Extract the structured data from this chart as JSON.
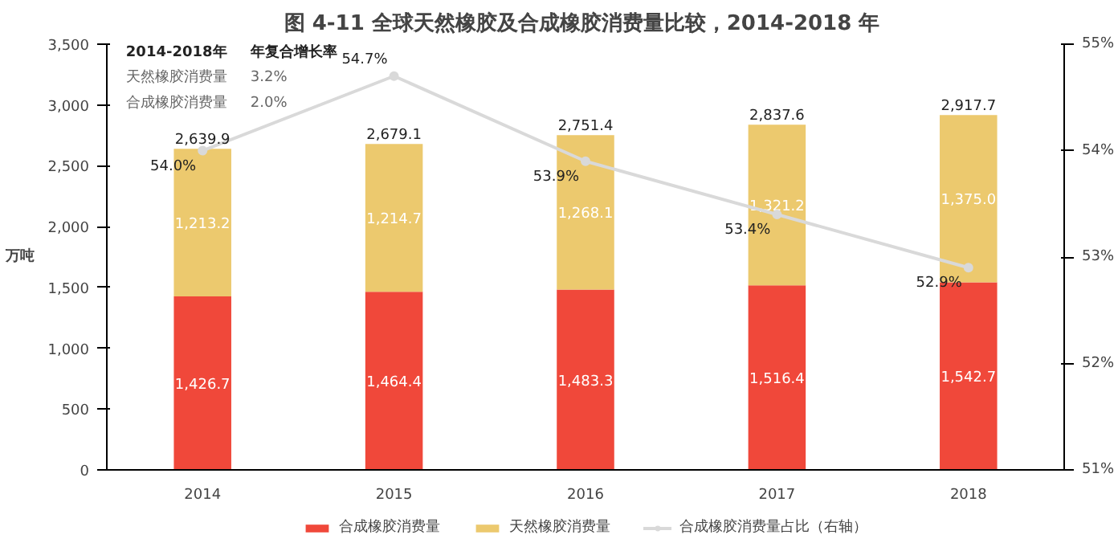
{
  "chart_data": {
    "type": "bar",
    "title": "图 4-11  全球天然橡胶及合成橡胶消费量比较，2014-2018 年",
    "ylabel": "万吨",
    "categories": [
      "2014",
      "2015",
      "2016",
      "2017",
      "2018"
    ],
    "stacked": true,
    "series": [
      {
        "name": "合成橡胶消费量",
        "color": "#f0483a",
        "values": [
          1426.7,
          1464.4,
          1483.3,
          1516.4,
          1542.7
        ],
        "value_labels": [
          "1,426.7",
          "1,464.4",
          "1,483.3",
          "1,516.4",
          "1,542.7"
        ]
      },
      {
        "name": "天然橡胶消费量",
        "color": "#ecc96e",
        "values": [
          1213.2,
          1214.7,
          1268.1,
          1321.2,
          1375.0
        ],
        "value_labels": [
          "1,213.2",
          "1,214.7",
          "1,268.1",
          "1,321.2",
          "1,375.0"
        ]
      },
      {
        "name": "合成橡胶消费量占比（右轴）",
        "type": "line",
        "axis": "y2",
        "color": "#d9d9d9",
        "marker": "circle",
        "values": [
          54.0,
          54.7,
          53.9,
          53.4,
          52.9
        ],
        "value_labels": [
          "54.0%",
          "54.7%",
          "53.9%",
          "53.4%",
          "52.9%"
        ]
      }
    ],
    "totals": [
      "2,639.9",
      "2,679.1",
      "2,751.4",
      "2,837.6",
      "2,917.7"
    ],
    "ylim": [
      0,
      3500
    ],
    "yticks": [
      {
        "value": 0,
        "label": "0"
      },
      {
        "value": 500,
        "label": "500"
      },
      {
        "value": 1000,
        "label": "1,000"
      },
      {
        "value": 1500,
        "label": "1,500"
      },
      {
        "value": 2000,
        "label": "2,000"
      },
      {
        "value": 2500,
        "label": "2,500"
      },
      {
        "value": 3000,
        "label": "3,000"
      },
      {
        "value": 3500,
        "label": "3,500"
      }
    ],
    "y2lim": [
      51,
      55
    ],
    "y2ticks": [
      {
        "value": 51,
        "label": "51%"
      },
      {
        "value": 52,
        "label": "52%"
      },
      {
        "value": 53,
        "label": "53%"
      },
      {
        "value": 54,
        "label": "54%"
      },
      {
        "value": 55,
        "label": "55%"
      }
    ],
    "annotations": [
      "2014-2018年",
      "年复合增长率",
      "天然橡胶消费量",
      "3.2%",
      "合成橡胶消费量",
      "2.0%"
    ],
    "grid": false,
    "legend": "bottom"
  }
}
